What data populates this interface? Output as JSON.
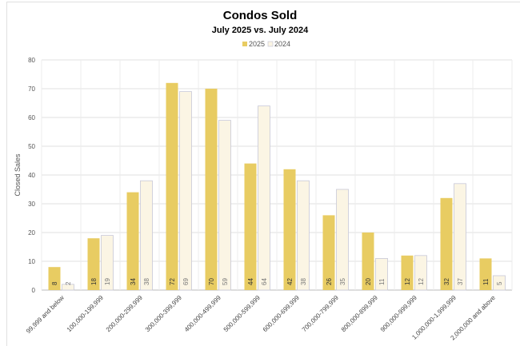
{
  "chart_data": {
    "type": "bar",
    "title": "Condos Sold",
    "subtitle": "July 2025 vs. July 2024",
    "xlabel": "",
    "ylabel": "Closed Sales",
    "ylim": [
      0,
      80
    ],
    "yticks": [
      0,
      10,
      20,
      30,
      40,
      50,
      60,
      70,
      80
    ],
    "grid": true,
    "legend": "top-center",
    "categories": [
      "99,999 and below",
      "100,000-199,999",
      "200,000-299,999",
      "300,000-399,999",
      "400,000-499,999",
      "500,000-599,999",
      "600,000-699,999",
      "700,000-799,999",
      "800,000-899,999",
      "900,000-999,999",
      "1,000,000-1,999,999",
      "2,000,000 and above"
    ],
    "series": [
      {
        "name": "2025",
        "color": "#E8CC62",
        "values": [
          8,
          18,
          34,
          72,
          70,
          44,
          42,
          26,
          20,
          12,
          32,
          11
        ]
      },
      {
        "name": "2024",
        "color": "#FBF5E4",
        "values": [
          2,
          19,
          38,
          69,
          59,
          64,
          38,
          35,
          11,
          12,
          37,
          5
        ]
      }
    ]
  }
}
